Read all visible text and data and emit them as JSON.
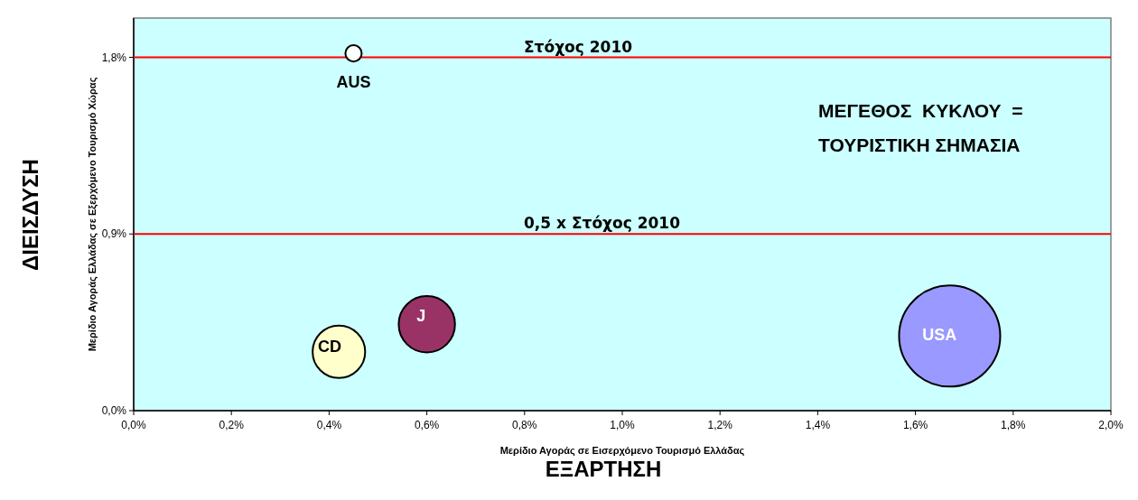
{
  "chart_data": {
    "type": "bubble",
    "xlabel": "Μερίδιο Αγοράς σε Εισερχόμενο Τουρισμό Ελλάδας",
    "ylabel": "Μερίδιο Αγοράς Ελλάδας σε Εξερχόμενο Τουρισμό Χώρας",
    "xlim": [
      0,
      2
    ],
    "xticks": [
      {
        "value": 0,
        "label": "0,0%"
      },
      {
        "value": 0.2,
        "label": "0,2%"
      },
      {
        "value": 0.4,
        "label": "0,4%"
      },
      {
        "value": 0.6,
        "label": "0,6%"
      },
      {
        "value": 0.8,
        "label": "0,8%"
      },
      {
        "value": 1.0,
        "label": "1,0%"
      },
      {
        "value": 1.2,
        "label": "1,2%"
      },
      {
        "value": 1.4,
        "label": "1,4%"
      },
      {
        "value": 1.6,
        "label": "1,6%"
      },
      {
        "value": 1.8,
        "label": "1,8%"
      },
      {
        "value": 2.0,
        "label": "2,0%"
      }
    ],
    "ylim": [
      0,
      2
    ],
    "yticks": [
      {
        "value": 0,
        "label": "0,0%"
      },
      {
        "value": 0.9,
        "label": "0,9%"
      },
      {
        "value": 1.8,
        "label": "1,8%"
      }
    ],
    "series": [
      {
        "name": "AUS",
        "color": "#ffffff",
        "x": [
          0.45
        ],
        "values": [
          1.82
        ],
        "sizes": [
          0.026
        ]
      },
      {
        "name": "CD",
        "color": "#ffffcc",
        "x": [
          0.42
        ],
        "values": [
          0.3
        ],
        "sizes": [
          0.27
        ]
      },
      {
        "name": "J",
        "color": "#993366",
        "x": [
          0.6
        ],
        "values": [
          0.44
        ],
        "sizes": [
          0.31
        ]
      },
      {
        "name": "USA",
        "color": "#9999ff",
        "x": [
          1.67
        ],
        "values": [
          0.38
        ],
        "sizes": [
          1
        ]
      }
    ],
    "ref_lines": [
      {
        "axis": "y",
        "value": 1.8,
        "label": "Στόχος 2010",
        "color": "#ff0000"
      },
      {
        "axis": "y",
        "value": 0.9,
        "label": "0,5 x Στόχος 2010",
        "color": "#ff0000"
      }
    ],
    "annotations": [
      "ΜΕΓΕΘΟΣ  ΚΥΚΛΟΥ  =",
      "ΤΟΥΡΙΣΤΙΚΗ ΣΗΜΑΣΙΑ",
      "ΔΙΕΙΣΔΥΣΗ",
      "ΕΞΑΡΤΗΣΗ"
    ],
    "grid": false
  }
}
